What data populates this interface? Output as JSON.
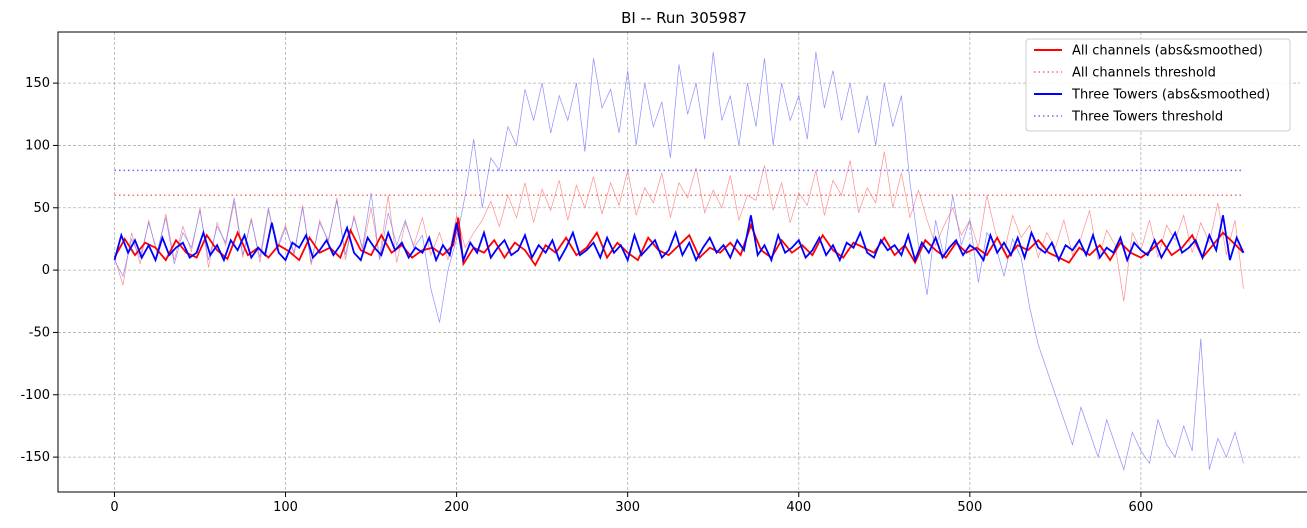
{
  "chart_data": {
    "type": "line",
    "title": "BI -- Run 305987",
    "xlabel": "",
    "ylabel": "",
    "xlim": [
      -33,
      693
    ],
    "ylim": [
      -178,
      191
    ],
    "xticks": [
      0,
      100,
      200,
      300,
      400,
      500,
      600
    ],
    "yticks": [
      -150,
      -100,
      -50,
      0,
      50,
      100,
      150
    ],
    "grid": true,
    "legend_position": "top-right",
    "colors": {
      "red": "#ff0000",
      "blue": "#0000ff",
      "raw_red": "#ff7a7a",
      "raw_blue": "#7b7bff"
    },
    "legend": [
      {
        "label": "All channels (abs&smoothed)",
        "color": "#ff0000",
        "style": "solid"
      },
      {
        "label": "All channels threshold",
        "color": "#ff6b6b",
        "style": "dotted"
      },
      {
        "label": "Three Towers (abs&smoothed)",
        "color": "#0000ff",
        "style": "solid"
      },
      {
        "label": "Three Towers threshold",
        "color": "#6b6bff",
        "style": "dotted"
      }
    ],
    "series": [
      {
        "name": "All channels (abs&smoothed)",
        "style": "solid",
        "color": "#ff0000",
        "x": [
          0,
          6,
          12,
          18,
          24,
          30,
          36,
          42,
          48,
          54,
          60,
          66,
          72,
          78,
          84,
          90,
          96,
          102,
          108,
          114,
          120,
          126,
          132,
          138,
          144,
          150,
          156,
          162,
          168,
          174,
          180,
          186,
          192,
          198,
          201,
          204,
          210,
          216,
          222,
          228,
          234,
          240,
          246,
          252,
          258,
          264,
          270,
          276,
          282,
          288,
          294,
          300,
          306,
          312,
          318,
          324,
          330,
          336,
          342,
          348,
          354,
          360,
          366,
          372,
          378,
          384,
          390,
          396,
          402,
          408,
          414,
          420,
          426,
          432,
          438,
          444,
          450,
          456,
          462,
          468,
          474,
          480,
          486,
          492,
          498,
          504,
          510,
          516,
          522,
          528,
          534,
          540,
          546,
          552,
          558,
          564,
          570,
          576,
          582,
          588,
          594,
          600,
          606,
          612,
          618,
          624,
          630,
          636,
          642,
          648,
          654,
          660
        ],
        "y": [
          10,
          25,
          12,
          22,
          18,
          8,
          24,
          14,
          10,
          28,
          16,
          9,
          30,
          12,
          18,
          10,
          20,
          15,
          8,
          26,
          14,
          18,
          10,
          32,
          16,
          12,
          28,
          14,
          20,
          10,
          16,
          18,
          12,
          20,
          42,
          5,
          18,
          14,
          24,
          10,
          22,
          16,
          4,
          20,
          14,
          26,
          12,
          18,
          30,
          10,
          22,
          14,
          8,
          26,
          16,
          12,
          20,
          28,
          10,
          18,
          14,
          22,
          12,
          36,
          16,
          10,
          24,
          14,
          20,
          12,
          28,
          16,
          10,
          22,
          18,
          14,
          26,
          12,
          20,
          6,
          24,
          16,
          10,
          22,
          14,
          18,
          12,
          26,
          10,
          20,
          16,
          24,
          14,
          10,
          6,
          18,
          12,
          20,
          8,
          22,
          14,
          10,
          16,
          24,
          12,
          18,
          28,
          10,
          20,
          30,
          22,
          14
        ]
      },
      {
        "name": "All channels threshold",
        "style": "dotted",
        "color": "#ff6b6b",
        "x": [
          0,
          660
        ],
        "y": [
          60,
          60
        ]
      },
      {
        "name": "Three Towers (abs&smoothed)",
        "style": "solid",
        "color": "#0000ff",
        "x": [
          0,
          4,
          8,
          12,
          16,
          20,
          24,
          28,
          32,
          36,
          40,
          44,
          48,
          52,
          56,
          60,
          64,
          68,
          72,
          76,
          80,
          84,
          88,
          92,
          96,
          100,
          104,
          108,
          112,
          116,
          120,
          124,
          128,
          132,
          136,
          140,
          144,
          148,
          152,
          156,
          160,
          164,
          168,
          172,
          176,
          180,
          184,
          188,
          192,
          196,
          200,
          204,
          208,
          212,
          216,
          220,
          224,
          228,
          232,
          236,
          240,
          244,
          248,
          252,
          256,
          260,
          264,
          268,
          272,
          276,
          280,
          284,
          288,
          292,
          296,
          300,
          304,
          308,
          312,
          316,
          320,
          324,
          328,
          332,
          336,
          340,
          344,
          348,
          352,
          356,
          360,
          364,
          368,
          372,
          376,
          380,
          384,
          388,
          392,
          396,
          400,
          404,
          408,
          412,
          416,
          420,
          424,
          428,
          432,
          436,
          440,
          444,
          448,
          452,
          456,
          460,
          464,
          468,
          472,
          476,
          480,
          484,
          488,
          492,
          496,
          500,
          504,
          508,
          512,
          516,
          520,
          524,
          528,
          532,
          536,
          540,
          544,
          548,
          552,
          556,
          560,
          564,
          568,
          572,
          576,
          580,
          584,
          588,
          592,
          596,
          600,
          604,
          608,
          612,
          616,
          620,
          624,
          628,
          632,
          636,
          640,
          644,
          648,
          652,
          656,
          660
        ],
        "y": [
          8,
          28,
          14,
          24,
          10,
          20,
          8,
          26,
          12,
          18,
          22,
          10,
          14,
          30,
          12,
          20,
          8,
          24,
          16,
          28,
          10,
          18,
          12,
          38,
          14,
          8,
          22,
          18,
          28,
          10,
          16,
          24,
          12,
          20,
          34,
          14,
          8,
          26,
          18,
          12,
          30,
          16,
          22,
          10,
          18,
          14,
          26,
          8,
          20,
          12,
          38,
          8,
          22,
          14,
          30,
          10,
          18,
          24,
          12,
          16,
          28,
          10,
          20,
          14,
          24,
          8,
          18,
          30,
          12,
          16,
          22,
          10,
          26,
          14,
          20,
          8,
          28,
          12,
          18,
          24,
          10,
          16,
          30,
          12,
          22,
          8,
          18,
          26,
          14,
          20,
          10,
          24,
          16,
          44,
          12,
          20,
          8,
          28,
          14,
          18,
          24,
          10,
          16,
          26,
          12,
          20,
          8,
          22,
          18,
          30,
          14,
          10,
          24,
          16,
          20,
          12,
          28,
          8,
          22,
          14,
          26,
          10,
          18,
          24,
          12,
          20,
          16,
          8,
          28,
          14,
          22,
          12,
          26,
          10,
          30,
          18,
          14,
          22,
          8,
          20,
          16,
          24,
          12,
          28,
          10,
          18,
          14,
          26,
          8,
          22,
          16,
          12,
          24,
          10,
          20,
          30,
          14,
          18,
          24,
          10,
          28,
          16,
          44,
          8,
          26,
          14
        ]
      },
      {
        "name": "Three Towers threshold",
        "style": "dotted",
        "color": "#6b6bff",
        "x": [
          0,
          660
        ],
        "y": [
          80,
          80
        ]
      },
      {
        "name": "",
        "style": "raw",
        "color": "#ff7a7a",
        "x": [
          0,
          5,
          10,
          15,
          20,
          25,
          30,
          35,
          40,
          45,
          50,
          55,
          60,
          65,
          70,
          75,
          80,
          85,
          90,
          95,
          100,
          105,
          110,
          115,
          120,
          125,
          130,
          135,
          140,
          145,
          150,
          155,
          160,
          165,
          170,
          175,
          180,
          185,
          190,
          195,
          200,
          205,
          210,
          215,
          220,
          225,
          230,
          235,
          240,
          245,
          250,
          255,
          260,
          265,
          270,
          275,
          280,
          285,
          290,
          295,
          300,
          305,
          310,
          315,
          320,
          325,
          330,
          335,
          340,
          345,
          350,
          355,
          360,
          365,
          370,
          375,
          380,
          385,
          390,
          395,
          400,
          405,
          410,
          415,
          420,
          425,
          430,
          435,
          440,
          445,
          450,
          455,
          460,
          465,
          470,
          475,
          480,
          485,
          490,
          495,
          500,
          505,
          510,
          515,
          520,
          525,
          530,
          535,
          540,
          545,
          550,
          555,
          560,
          565,
          570,
          575,
          580,
          585,
          590,
          595,
          600,
          605,
          610,
          615,
          620,
          625,
          630,
          635,
          640,
          645,
          650,
          655,
          660
        ],
        "y": [
          10,
          -12,
          30,
          5,
          40,
          12,
          45,
          8,
          35,
          15,
          50,
          2,
          38,
          20,
          55,
          10,
          42,
          6,
          48,
          18,
          36,
          12,
          52,
          4,
          40,
          22,
          58,
          8,
          44,
          16,
          50,
          10,
          60,
          6,
          38,
          20,
          42,
          12,
          30,
          8,
          44,
          18,
          30,
          40,
          55,
          35,
          60,
          42,
          70,
          38,
          65,
          48,
          72,
          40,
          68,
          50,
          75,
          45,
          70,
          52,
          80,
          44,
          66,
          54,
          78,
          42,
          70,
          58,
          82,
          46,
          64,
          50,
          76,
          40,
          60,
          56,
          84,
          48,
          70,
          38,
          62,
          52,
          80,
          44,
          72,
          60,
          88,
          46,
          66,
          54,
          95,
          50,
          78,
          42,
          64,
          40,
          20,
          36,
          50,
          28,
          40,
          18,
          60,
          30,
          14,
          44,
          26,
          36,
          10,
          30,
          18,
          40,
          12,
          26,
          48,
          8,
          32,
          20,
          -25,
          30,
          16,
          40,
          10,
          36,
          24,
          44,
          14,
          38,
          22,
          54,
          12,
          40,
          -15
        ]
      },
      {
        "name": "",
        "style": "raw",
        "color": "#7b7bff",
        "x": [
          0,
          5,
          10,
          15,
          20,
          25,
          30,
          35,
          40,
          45,
          50,
          55,
          60,
          65,
          70,
          75,
          80,
          85,
          90,
          95,
          100,
          105,
          110,
          115,
          120,
          125,
          130,
          135,
          140,
          145,
          150,
          155,
          160,
          165,
          170,
          175,
          180,
          185,
          190,
          195,
          200,
          205,
          210,
          215,
          220,
          225,
          230,
          235,
          240,
          245,
          250,
          255,
          260,
          265,
          270,
          275,
          280,
          285,
          290,
          295,
          300,
          305,
          310,
          315,
          320,
          325,
          330,
          335,
          340,
          345,
          350,
          355,
          360,
          365,
          370,
          375,
          380,
          385,
          390,
          395,
          400,
          405,
          410,
          415,
          420,
          425,
          430,
          435,
          440,
          445,
          450,
          455,
          460,
          465,
          470,
          475,
          480,
          485,
          490,
          495,
          500,
          505,
          510,
          515,
          520,
          525,
          530,
          535,
          540,
          545,
          550,
          555,
          560,
          565,
          570,
          575,
          580,
          585,
          590,
          595,
          600,
          605,
          610,
          615,
          620,
          625,
          630,
          635,
          640,
          645,
          650,
          655,
          660
        ],
        "y": [
          8,
          -5,
          25,
          10,
          38,
          15,
          42,
          5,
          30,
          18,
          48,
          8,
          35,
          22,
          58,
          12,
          40,
          10,
          50,
          16,
          34,
          14,
          50,
          6,
          38,
          24,
          56,
          12,
          42,
          18,
          62,
          8,
          46,
          20,
          40,
          18,
          28,
          -15,
          -42,
          0,
          25,
          60,
          105,
          50,
          90,
          80,
          115,
          100,
          145,
          120,
          150,
          110,
          140,
          120,
          150,
          95,
          170,
          130,
          145,
          110,
          160,
          100,
          150,
          115,
          135,
          90,
          165,
          125,
          150,
          105,
          175,
          120,
          140,
          100,
          150,
          115,
          170,
          100,
          150,
          120,
          140,
          105,
          175,
          130,
          160,
          120,
          150,
          110,
          140,
          100,
          150,
          115,
          140,
          70,
          20,
          -20,
          40,
          10,
          60,
          20,
          40,
          -10,
          30,
          20,
          -5,
          25,
          10,
          -30,
          -60,
          -80,
          -100,
          -120,
          -140,
          -110,
          -130,
          -150,
          -120,
          -140,
          -160,
          -130,
          -145,
          -155,
          -120,
          -140,
          -150,
          -125,
          -145,
          -55,
          -160,
          -135,
          -150,
          -130,
          -155
        ]
      }
    ]
  }
}
